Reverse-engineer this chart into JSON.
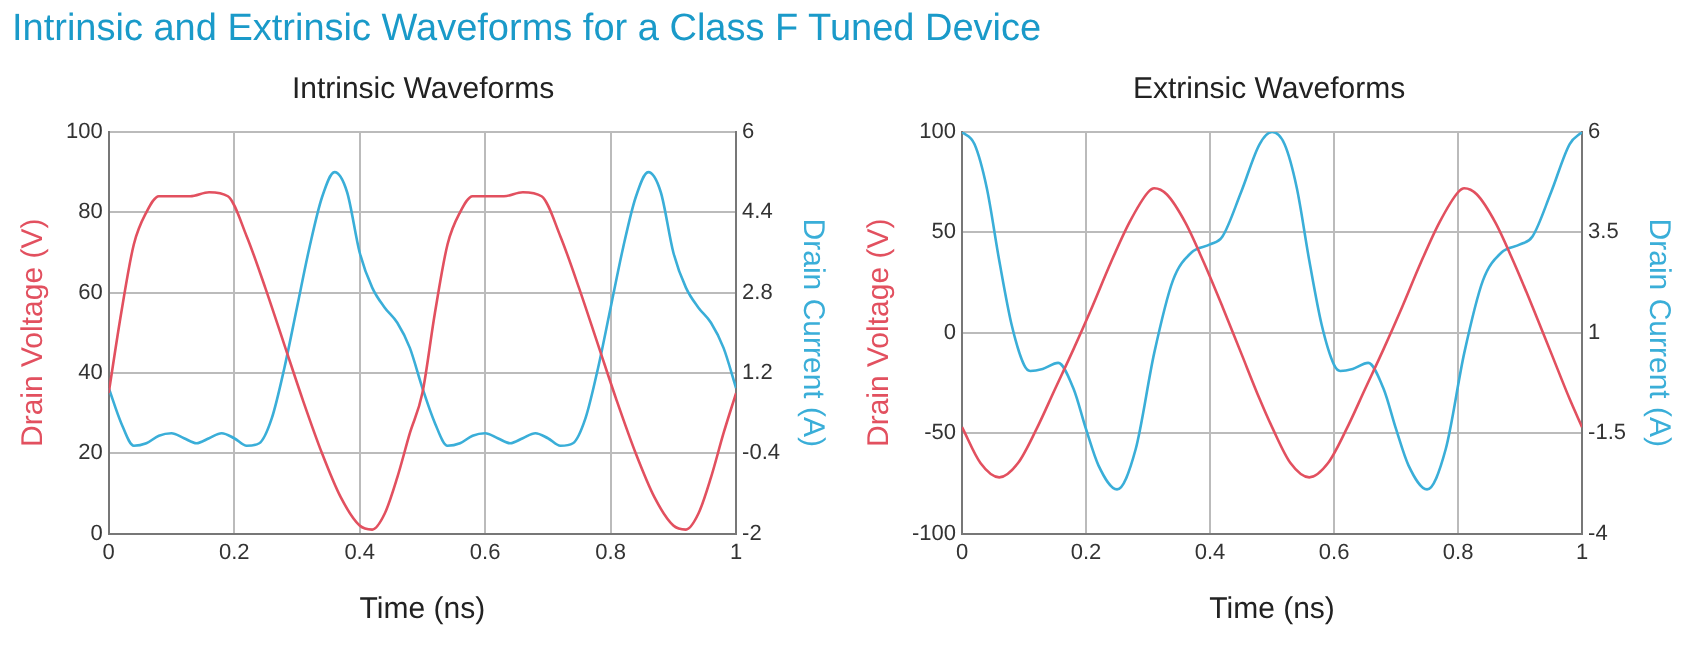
{
  "chart_data": [
    {
      "type": "line",
      "title": "Intrinsic Waveforms",
      "annotations": [
        "Intrinsic and Extrinsic Waveforms for a Class F Tuned Device"
      ],
      "xlabel": "Time (ns)",
      "ylabel": "Drain Voltage (V)",
      "y2label": "Drain Current (A)",
      "xlim": [
        0,
        1
      ],
      "xticks": [
        0,
        0.2,
        0.4,
        0.6,
        0.8,
        1
      ],
      "ylim": [
        0,
        100
      ],
      "yticks": [
        0,
        20,
        40,
        60,
        80,
        100
      ],
      "y2lim": [
        -2,
        6
      ],
      "y2ticks": [
        -2,
        -0.4,
        1.2,
        2.8,
        4.4,
        6
      ],
      "grid": true,
      "legend": false,
      "marker": "none",
      "line_style": "solid",
      "series": [
        {
          "color": "#e2505f",
          "x": [
            0,
            0.02,
            0.04,
            0.06,
            0.08,
            0.1,
            0.13,
            0.16,
            0.19,
            0.22,
            0.25,
            0.28,
            0.31,
            0.34,
            0.37,
            0.4,
            0.42,
            0.44,
            0.46,
            0.48,
            0.5,
            0.52,
            0.54,
            0.56,
            0.58,
            0.6,
            0.63,
            0.66,
            0.69,
            0.72,
            0.75,
            0.78,
            0.81,
            0.84,
            0.87,
            0.9,
            0.92,
            0.94,
            0.96,
            0.98,
            1
          ],
          "values": [
            35,
            55,
            72,
            80,
            84,
            84,
            84,
            85,
            84,
            74,
            61,
            47,
            33,
            20,
            9,
            2,
            1,
            5,
            14,
            25,
            35,
            55,
            72,
            80,
            84,
            84,
            84,
            85,
            84,
            74,
            61,
            47,
            33,
            20,
            9,
            2,
            1,
            5,
            14,
            25,
            35
          ]
        },
        {
          "color": "#3aaed8",
          "axis": "y2",
          "x": [
            0,
            0.02,
            0.04,
            0.06,
            0.08,
            0.1,
            0.12,
            0.14,
            0.16,
            0.18,
            0.2,
            0.22,
            0.24,
            0.26,
            0.28,
            0.3,
            0.32,
            0.34,
            0.36,
            0.38,
            0.4,
            0.42,
            0.44,
            0.46,
            0.48,
            0.5,
            0.52,
            0.54,
            0.56,
            0.58,
            0.6,
            0.62,
            0.64,
            0.66,
            0.68,
            0.7,
            0.72,
            0.74,
            0.76,
            0.78,
            0.8,
            0.82,
            0.84,
            0.86,
            0.88,
            0.9,
            0.92,
            0.94,
            0.96,
            0.98,
            1
          ],
          "values": [
            0.9,
            0.2,
            -0.25,
            -0.2,
            -0.05,
            0,
            -0.1,
            -0.2,
            -0.1,
            0,
            -0.1,
            -0.25,
            -0.2,
            0.3,
            1.3,
            2.5,
            3.7,
            4.7,
            5.2,
            4.8,
            3.6,
            2.9,
            2.5,
            2.2,
            1.7,
            0.9,
            0.2,
            -0.25,
            -0.2,
            -0.05,
            0,
            -0.1,
            -0.2,
            -0.1,
            0,
            -0.1,
            -0.25,
            -0.2,
            0.3,
            1.3,
            2.5,
            3.7,
            4.7,
            5.2,
            4.8,
            3.6,
            2.9,
            2.5,
            2.2,
            1.7,
            0.9
          ]
        }
      ]
    },
    {
      "type": "line",
      "title": "Extrinsic Waveforms",
      "xlabel": "Time (ns)",
      "ylabel": "Drain Voltage (V)",
      "y2label": "Drain Current (A)",
      "xlim": [
        0,
        1
      ],
      "xticks": [
        0,
        0.2,
        0.4,
        0.6,
        0.8,
        1
      ],
      "ylim": [
        -100,
        100
      ],
      "yticks": [
        -100,
        -50,
        0,
        50,
        100
      ],
      "y2lim": [
        -4,
        6
      ],
      "y2ticks": [
        -4,
        -1.5,
        1,
        3.5,
        6
      ],
      "grid": true,
      "legend": false,
      "marker": "none",
      "line_style": "solid",
      "series": [
        {
          "color": "#e2505f",
          "x": [
            0,
            0.03,
            0.06,
            0.09,
            0.12,
            0.15,
            0.18,
            0.21,
            0.24,
            0.27,
            0.3,
            0.31,
            0.33,
            0.36,
            0.39,
            0.42,
            0.45,
            0.48,
            0.5,
            0.53,
            0.56,
            0.59,
            0.62,
            0.65,
            0.68,
            0.71,
            0.74,
            0.77,
            0.8,
            0.81,
            0.83,
            0.86,
            0.89,
            0.92,
            0.95,
            0.98,
            1
          ],
          "values": [
            -47,
            -65,
            -72,
            -65,
            -48,
            -28,
            -8,
            13,
            35,
            55,
            70,
            72,
            69,
            55,
            35,
            13,
            -10,
            -33,
            -47,
            -65,
            -72,
            -65,
            -48,
            -28,
            -8,
            13,
            35,
            55,
            70,
            72,
            69,
            55,
            35,
            13,
            -10,
            -33,
            -47
          ]
        },
        {
          "color": "#3aaed8",
          "axis": "y2",
          "x": [
            0,
            0.02,
            0.04,
            0.06,
            0.08,
            0.1,
            0.11,
            0.13,
            0.155,
            0.18,
            0.2,
            0.22,
            0.25,
            0.28,
            0.31,
            0.34,
            0.37,
            0.4,
            0.42,
            0.45,
            0.48,
            0.5,
            0.52,
            0.54,
            0.56,
            0.58,
            0.6,
            0.61,
            0.63,
            0.655,
            0.68,
            0.7,
            0.72,
            0.75,
            0.78,
            0.81,
            0.84,
            0.87,
            0.9,
            0.92,
            0.95,
            0.98,
            1
          ],
          "values": [
            6,
            5.7,
            4.6,
            2.8,
            1.2,
            0.2,
            0.05,
            0.1,
            0.25,
            -0.4,
            -1.4,
            -2.3,
            -2.9,
            -1.9,
            0.5,
            2.3,
            3,
            3.2,
            3.4,
            4.5,
            5.7,
            6,
            5.7,
            4.6,
            2.8,
            1.2,
            0.2,
            0.05,
            0.1,
            0.25,
            -0.4,
            -1.4,
            -2.3,
            -2.9,
            -1.9,
            0.5,
            2.3,
            3,
            3.2,
            3.4,
            4.5,
            5.7,
            6
          ]
        }
      ]
    }
  ]
}
